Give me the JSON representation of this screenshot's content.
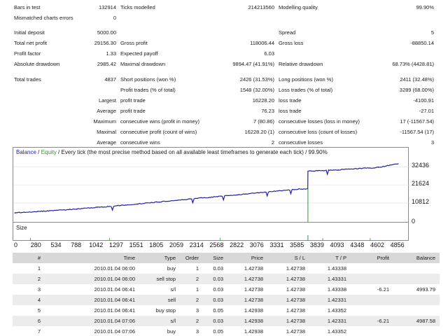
{
  "report": {
    "rows": [
      {
        "c": [
          {
            "t": "Bars in test",
            "k": "lbl",
            "x": 20
          },
          {
            "t": "132914",
            "k": "val",
            "x": 166
          },
          {
            "t": "Ticks modelled",
            "k": "lbl",
            "x": 172
          },
          {
            "t": "214213560",
            "k": "val",
            "x": 392
          },
          {
            "t": "Modelling quality",
            "k": "lbl",
            "x": 398
          },
          {
            "t": "99.90%",
            "k": "val",
            "x": 620
          }
        ]
      },
      {
        "c": [
          {
            "t": "Mismatched charts errors",
            "k": "lbl",
            "x": 20
          },
          {
            "t": "0",
            "k": "val",
            "x": 166
          }
        ]
      },
      {
        "c": []
      },
      {
        "c": [
          {
            "t": "Initial deposit",
            "k": "lbl",
            "x": 20
          },
          {
            "t": "5000.00",
            "k": "val",
            "x": 166
          },
          {
            "t": "Spread",
            "k": "lbl",
            "x": 398
          },
          {
            "t": "5",
            "k": "val",
            "x": 620
          }
        ]
      },
      {
        "c": [
          {
            "t": "Total net profit",
            "k": "lbl",
            "x": 20
          },
          {
            "t": "29156.30",
            "k": "val",
            "x": 166
          },
          {
            "t": "Gross profit",
            "k": "lbl",
            "x": 172
          },
          {
            "t": "118006.44",
            "k": "val",
            "x": 392
          },
          {
            "t": "Gross loss",
            "k": "lbl",
            "x": 398
          },
          {
            "t": "-88850.14",
            "k": "val",
            "x": 620
          }
        ]
      },
      {
        "c": [
          {
            "t": "Profit factor",
            "k": "lbl",
            "x": 20
          },
          {
            "t": "1.33",
            "k": "val",
            "x": 166
          },
          {
            "t": "Expected payoff",
            "k": "lbl",
            "x": 172
          },
          {
            "t": "6.03",
            "k": "val",
            "x": 392
          }
        ]
      },
      {
        "c": [
          {
            "t": "Absolute drawdown",
            "k": "lbl",
            "x": 20
          },
          {
            "t": "2985.42",
            "k": "val",
            "x": 166
          },
          {
            "t": "Maximal drawdown",
            "k": "lbl",
            "x": 172
          },
          {
            "t": "9894.47 (41.91%)",
            "k": "val",
            "x": 392
          },
          {
            "t": "Relative drawdown",
            "k": "lbl",
            "x": 398
          },
          {
            "t": "68.73% (4428.81)",
            "k": "val",
            "x": 620
          }
        ]
      },
      {
        "c": []
      },
      {
        "c": [
          {
            "t": "Total trades",
            "k": "lbl",
            "x": 20
          },
          {
            "t": "4837",
            "k": "val",
            "x": 166
          },
          {
            "t": "Short positions (won %)",
            "k": "lbl",
            "x": 172
          },
          {
            "t": "2426 (31.53%)",
            "k": "val",
            "x": 392
          },
          {
            "t": "Long positions (won %)",
            "k": "lbl",
            "x": 398
          },
          {
            "t": "2411 (32.48%)",
            "k": "val",
            "x": 620
          }
        ]
      },
      {
        "c": [
          {
            "t": "Profit trades (% of total)",
            "k": "lbl",
            "x": 172
          },
          {
            "t": "1548 (32.00%)",
            "k": "val",
            "x": 392
          },
          {
            "t": "Loss trades (% of total)",
            "k": "lbl",
            "x": 398
          },
          {
            "t": "3289 (68.00%)",
            "k": "val",
            "x": 620
          }
        ]
      },
      {
        "c": [
          {
            "t": "Largest",
            "k": "lblr",
            "x": 166
          },
          {
            "t": "profit trade",
            "k": "lbl",
            "x": 172
          },
          {
            "t": "16228.20",
            "k": "val",
            "x": 392
          },
          {
            "t": "loss trade",
            "k": "lbl",
            "x": 398
          },
          {
            "t": "-4100.91",
            "k": "val",
            "x": 620
          }
        ]
      },
      {
        "c": [
          {
            "t": "Average",
            "k": "lblr",
            "x": 166
          },
          {
            "t": "profit trade",
            "k": "lbl",
            "x": 172
          },
          {
            "t": "76.23",
            "k": "val",
            "x": 392
          },
          {
            "t": "loss trade",
            "k": "lbl",
            "x": 398
          },
          {
            "t": "-27.01",
            "k": "val",
            "x": 620
          }
        ]
      },
      {
        "c": [
          {
            "t": "Maximum",
            "k": "lblr",
            "x": 166
          },
          {
            "t": "consecutive wins (profit in money)",
            "k": "lbl",
            "x": 172
          },
          {
            "t": "7 (80.86)",
            "k": "val",
            "x": 392
          },
          {
            "t": "consecutive losses (loss in money)",
            "k": "lbl",
            "x": 398
          },
          {
            "t": "17 (-11567.54)",
            "k": "val",
            "x": 620
          }
        ]
      },
      {
        "c": [
          {
            "t": "Maximal",
            "k": "lblr",
            "x": 166
          },
          {
            "t": "consecutive profit (count of wins)",
            "k": "lbl",
            "x": 172
          },
          {
            "t": "16228.20 (1)",
            "k": "val",
            "x": 392
          },
          {
            "t": "consecutive loss (count of losses)",
            "k": "lbl",
            "x": 398
          },
          {
            "t": "-11567.54 (17)",
            "k": "val",
            "x": 620
          }
        ]
      },
      {
        "c": [
          {
            "t": "Average",
            "k": "lblr",
            "x": 166
          },
          {
            "t": "consecutive wins",
            "k": "lbl",
            "x": 172
          },
          {
            "t": "2",
            "k": "val",
            "x": 392
          },
          {
            "t": "consecutive losses",
            "k": "lbl",
            "x": 398
          },
          {
            "t": "3",
            "k": "val",
            "x": 620
          }
        ]
      }
    ]
  },
  "chart": {
    "title_balance": "Balance",
    "title_sep": " / ",
    "title_equity": "Equity",
    "title_rest": " / Every tick (the most precise method based on all available least timeframes to generate each tick) / 99.90%",
    "size_label": "Size",
    "balance_color": "#1f1fa0",
    "equity_color": "#22a022"
  },
  "chart_data": {
    "type": "line",
    "series": [
      {
        "name": "Balance",
        "x": [
          0,
          280,
          534,
          788,
          1042,
          1297,
          1551,
          1805,
          2059,
          2314,
          2568,
          2822,
          3076,
          3331,
          3585,
          3710,
          3712,
          3839,
          4093,
          4348,
          4602,
          4856
        ],
        "values": [
          5000,
          5700,
          6500,
          7300,
          8200,
          9200,
          10300,
          11400,
          12500,
          13600,
          14700,
          15700,
          16900,
          18000,
          19100,
          19300,
          29800,
          30000,
          30600,
          31300,
          32000,
          34200
        ]
      }
    ],
    "yticks": [
      10812,
      21624,
      32436
    ],
    "ytick_labels": [
      "10812",
      "21624",
      "32436"
    ],
    "xticks": [
      0,
      280,
      534,
      788,
      1042,
      1297,
      1551,
      1805,
      2059,
      2314,
      2568,
      2822,
      3076,
      3331,
      3585,
      3839,
      4093,
      4348,
      4602,
      4856
    ],
    "xtick_labels": [
      "0",
      "280",
      "534",
      "788",
      "1042",
      "1297",
      "1551",
      "1805",
      "2059",
      "2314",
      "2568",
      "2822",
      "3076",
      "3331",
      "3585",
      "3839",
      "4093",
      "4348",
      "4602",
      "4856"
    ],
    "ylim": [
      0,
      38000
    ],
    "xlim": [
      0,
      4980
    ]
  },
  "table": {
    "headers": [
      "#",
      "Time",
      "Type",
      "Order",
      "Size",
      "Price",
      "S / L",
      "T / P",
      "Profit",
      "Balance"
    ],
    "rows": [
      [
        "1",
        "2010.01.04 06:00",
        "buy",
        "1",
        "0.03",
        "1.42738",
        "1.42738",
        "1.43338",
        "",
        ""
      ],
      [
        "2",
        "2010.01.04 06:00",
        "sell stop",
        "2",
        "0.03",
        "1.42738",
        "1.42738",
        "1.43331",
        "",
        ""
      ],
      [
        "3",
        "2010.01.04 06:41",
        "s/l",
        "1",
        "0.03",
        "1.42738",
        "1.42738",
        "1.43338",
        "-6.21",
        "4993.79"
      ],
      [
        "4",
        "2010.01.04 06:41",
        "sell",
        "2",
        "0.03",
        "1.42738",
        "1.42738",
        "1.42331",
        "",
        ""
      ],
      [
        "5",
        "2010.01.04 06:41",
        "buy stop",
        "3",
        "0.05",
        "1.42938",
        "1.42738",
        "1.43352",
        "",
        ""
      ],
      [
        "6",
        "2010.01.04 07:06",
        "s/l",
        "2",
        "0.03",
        "1.42938",
        "1.42738",
        "1.42331",
        "-6.21",
        "4987.58"
      ],
      [
        "7",
        "2010.01.04 07:06",
        "buy",
        "3",
        "0.05",
        "1.42938",
        "1.42738",
        "1.43352",
        "",
        ""
      ]
    ]
  }
}
